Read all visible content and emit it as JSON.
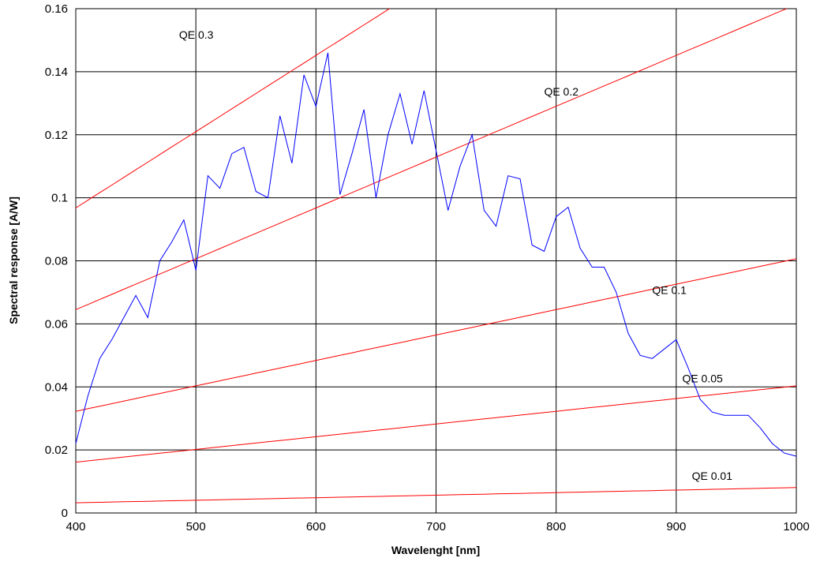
{
  "chart_data": {
    "type": "line",
    "title": "",
    "xlabel": "Wavelenght [nm]",
    "ylabel": "Spectral response [A/W]",
    "xlim": [
      400,
      1000
    ],
    "ylim": [
      0,
      0.16
    ],
    "x_ticks": [
      "400",
      "500",
      "600",
      "700",
      "800",
      "900",
      "1000"
    ],
    "y_ticks": [
      "0",
      "0.02",
      "0.04",
      "0.06",
      "0.08",
      "0.1",
      "0.12",
      "0.14",
      "0.16"
    ],
    "grid": true,
    "colors": {
      "response": "#0000ff",
      "qe": "#ff0000"
    },
    "response": {
      "x": [
        400,
        410,
        420,
        430,
        440,
        450,
        460,
        470,
        480,
        490,
        500,
        510,
        520,
        530,
        540,
        550,
        560,
        570,
        580,
        590,
        600,
        610,
        620,
        630,
        640,
        650,
        660,
        670,
        680,
        690,
        700,
        710,
        720,
        730,
        740,
        750,
        760,
        770,
        780,
        790,
        800,
        810,
        820,
        830,
        840,
        850,
        860,
        870,
        880,
        890,
        900,
        910,
        920,
        930,
        940,
        950,
        960,
        970,
        980,
        990,
        1000
      ],
      "y": [
        0.022,
        0.037,
        0.049,
        0.055,
        0.062,
        0.069,
        0.062,
        0.08,
        0.086,
        0.093,
        0.077,
        0.107,
        0.103,
        0.114,
        0.116,
        0.102,
        0.1,
        0.126,
        0.111,
        0.139,
        0.129,
        0.146,
        0.101,
        0.114,
        0.128,
        0.1,
        0.12,
        0.133,
        0.117,
        0.134,
        0.115,
        0.096,
        0.11,
        0.12,
        0.096,
        0.091,
        0.107,
        0.106,
        0.085,
        0.083,
        0.094,
        0.097,
        0.084,
        0.078,
        0.078,
        0.07,
        0.057,
        0.05,
        0.049,
        0.052,
        0.055,
        0.046,
        0.036,
        0.032,
        0.031,
        0.031,
        0.031,
        0.027,
        0.022,
        0.019,
        0.018
      ]
    },
    "qe_curves": [
      {
        "label": "QE 0.3",
        "qe": 0.3,
        "label_at": [
          486,
          0.1505
        ]
      },
      {
        "label": "QE 0.2",
        "qe": 0.2,
        "label_at": [
          790,
          0.1325
        ]
      },
      {
        "label": "QE 0.1",
        "qe": 0.1,
        "label_at": [
          880,
          0.0695
        ]
      },
      {
        "label": "QE 0.05",
        "qe": 0.05,
        "label_at": [
          905,
          0.0415
        ]
      },
      {
        "label": "QE 0.01",
        "qe": 0.01,
        "label_at": [
          913,
          0.0105
        ]
      }
    ]
  }
}
